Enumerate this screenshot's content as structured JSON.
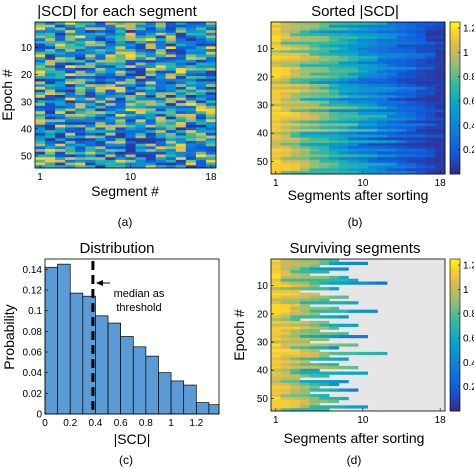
{
  "figure": {
    "captions": [
      "(a)",
      "(b)",
      "(c)",
      "(d)"
    ]
  },
  "chart_data": [
    {
      "type": "heatmap",
      "title": "|SCD| for each segment",
      "xlabel": "Segment #",
      "ylabel": "Epoch #",
      "xlim": [
        1,
        18
      ],
      "ylim": [
        1,
        54
      ],
      "xticks": [
        1,
        10,
        18
      ],
      "yticks": [
        10,
        20,
        30,
        40,
        50
      ],
      "rows": 54,
      "cols": 18,
      "colormap": "parula",
      "clim": [
        0,
        1.25
      ],
      "ordering": "random",
      "value_range_shown": [
        0.05,
        1.2
      ]
    },
    {
      "type": "heatmap",
      "title": "Sorted |SCD|",
      "xlabel": "Segments after sorting",
      "ylabel": "",
      "xlim": [
        1,
        18
      ],
      "ylim": [
        1,
        54
      ],
      "xticks": [
        1,
        10,
        18
      ],
      "yticks": [
        10,
        20,
        30,
        40,
        50
      ],
      "rows": 54,
      "cols": 18,
      "colormap": "parula",
      "ordering": "descending within each epoch",
      "colorbar": {
        "ticks": [
          0.2,
          0.4,
          0.6,
          0.8,
          1,
          1.2
        ],
        "labels": [
          "0.2",
          "0.4",
          "0.6",
          "0.8",
          "1",
          "1.2"
        ],
        "clim": [
          0,
          1.25
        ]
      }
    },
    {
      "type": "bar",
      "title": "Distribution",
      "xlabel": "|SCD|",
      "ylabel": "Probability",
      "bin_edges": [
        0,
        0.1,
        0.2,
        0.3,
        0.4,
        0.5,
        0.6,
        0.7,
        0.8,
        0.9,
        1.0,
        1.1,
        1.2,
        1.3,
        1.38
      ],
      "values": [
        0.142,
        0.145,
        0.117,
        0.114,
        0.095,
        0.088,
        0.075,
        0.065,
        0.056,
        0.04,
        0.032,
        0.028,
        0.011,
        0.009
      ],
      "bar_color": "#5b9bd5",
      "xlim": [
        0,
        1.38
      ],
      "ylim": [
        0,
        0.15
      ],
      "xticks": [
        0,
        0.2,
        0.4,
        0.6,
        0.8,
        1,
        1.2
      ],
      "xtick_labels": [
        "0",
        "0.2",
        "0.4",
        "0.6",
        "0.8",
        "1",
        "1.2"
      ],
      "yticks": [
        0,
        0.02,
        0.04,
        0.06,
        0.08,
        0.1,
        0.12,
        0.14
      ],
      "ytick_labels": [
        "0",
        "0.02",
        "0.04",
        "0.06",
        "0.08",
        "0.1",
        "0.12",
        "0.14"
      ],
      "threshold": {
        "value": 0.38,
        "label_lines": [
          "median as",
          "threshold"
        ]
      }
    },
    {
      "type": "heatmap",
      "title": "Surviving segments",
      "xlabel": "Segments after sorting",
      "ylabel": "Epoch #",
      "xlim": [
        1,
        18
      ],
      "ylim": [
        1,
        54
      ],
      "xticks": [
        1,
        10,
        18
      ],
      "yticks": [
        10,
        20,
        30,
        40,
        50
      ],
      "rows": 54,
      "cols": 18,
      "colormap": "parula",
      "ordering": "descending within each epoch; segments below median set to background",
      "background_color": "#e6e6e6",
      "surviving_counts": [
        7,
        10,
        5,
        8,
        6,
        4,
        8,
        9,
        12,
        5,
        7,
        3,
        5,
        8,
        6,
        9,
        4,
        7,
        11,
        5,
        8,
        3,
        6,
        9,
        7,
        5,
        8,
        10,
        6,
        4,
        9,
        7,
        5,
        12,
        6,
        8,
        4,
        7,
        9,
        5,
        10,
        6,
        3,
        8,
        7,
        5,
        9,
        4,
        6,
        8,
        7,
        5,
        10,
        6
      ],
      "colorbar": {
        "ticks": [
          0.2,
          0.4,
          0.6,
          0.8,
          1,
          1.2
        ],
        "labels": [
          "0.2",
          "0.4",
          "0.6",
          "0.8",
          "1",
          "1.2"
        ],
        "clim": [
          0,
          1.25
        ]
      }
    }
  ]
}
